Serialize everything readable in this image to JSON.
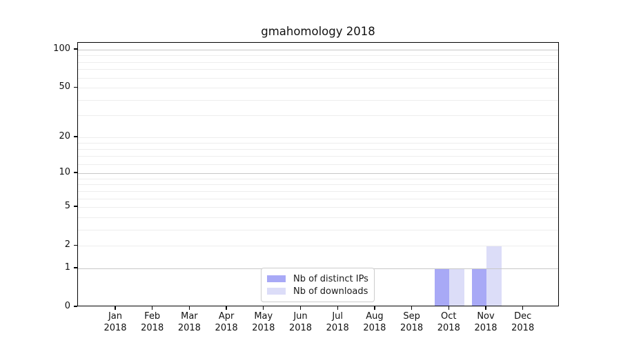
{
  "title": "gmahomology 2018",
  "chart_data": {
    "type": "bar",
    "title": "gmahomology 2018",
    "x_months": [
      "Jan",
      "Feb",
      "Mar",
      "Apr",
      "May",
      "Jun",
      "Jul",
      "Aug",
      "Sep",
      "Oct",
      "Nov",
      "Dec"
    ],
    "x_year": "2018",
    "series": [
      {
        "name": "Nb of distinct IPs",
        "color": "#a8a9f6",
        "values": [
          0,
          0,
          0,
          0,
          0,
          0,
          0,
          0,
          0,
          1,
          1,
          0
        ]
      },
      {
        "name": "Nb of downloads",
        "color": "#dcddf8",
        "values": [
          0,
          0,
          0,
          0,
          0,
          0,
          0,
          0,
          0,
          1,
          2,
          0
        ]
      }
    ],
    "y_axis": {
      "scale": "log1p",
      "tick_labels": [
        0,
        1,
        2,
        5,
        10,
        20,
        50,
        100
      ],
      "major_gridlines": [
        1,
        10,
        100
      ],
      "minor_gridlines": [
        2,
        3,
        4,
        5,
        6,
        7,
        8,
        9,
        12,
        14,
        16,
        18,
        20,
        30,
        40,
        50,
        60,
        70,
        80,
        90
      ],
      "top_value": 113
    },
    "legend_position": "bottom-center-inside",
    "grid": "horizontal"
  },
  "colors": {
    "bar_distinct_ips": "#a8a9f6",
    "bar_downloads": "#dcddf8",
    "major_grid": "#c8c8c8",
    "minor_grid": "#ededed",
    "axis": "#000000",
    "background": "#ffffff",
    "legend_border": "#cccccc"
  }
}
